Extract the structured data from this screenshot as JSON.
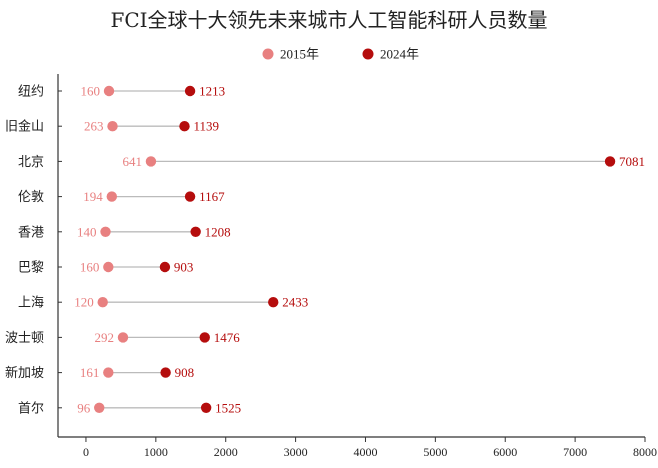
{
  "colors": {
    "series_2015": "#e88080",
    "series_2024": "#b50d0d",
    "connector": "#bbbbbb",
    "axis": "#333333"
  },
  "chart_data": {
    "type": "dumbbell",
    "title": "FCI全球十大领先未来城市人工智能科研人员数量",
    "xlabel": "",
    "ylabel": "",
    "xlim": [
      -400,
      8000
    ],
    "xticks": [
      0,
      1000,
      2000,
      3000,
      4000,
      5000,
      6000,
      7000,
      8000
    ],
    "grid": false,
    "legend_position": "top-center",
    "categories": [
      "纽约",
      "旧金山",
      "北京",
      "伦敦",
      "香港",
      "巴黎",
      "上海",
      "波士顿",
      "新加坡",
      "首尔"
    ],
    "series": [
      {
        "name": "2015年",
        "labels": [
          160,
          263,
          641,
          194,
          140,
          160,
          120,
          292,
          161,
          96
        ],
        "x": [
          330,
          380,
          930,
          370,
          280,
          320,
          240,
          530,
          320,
          190
        ]
      },
      {
        "name": "2024年",
        "labels": [
          1213,
          1139,
          7081,
          1167,
          1208,
          903,
          2433,
          1476,
          908,
          1525
        ],
        "x": [
          1490,
          1410,
          7500,
          1490,
          1570,
          1130,
          2680,
          1700,
          1140,
          1720
        ]
      }
    ]
  }
}
